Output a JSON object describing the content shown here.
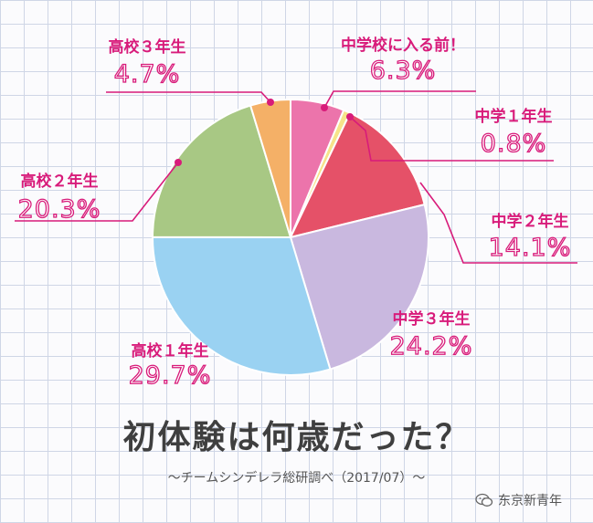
{
  "chart_data": {
    "type": "pie",
    "title": "初体験は何歳だった？",
    "subtitle": "〜チームシンデレラ総研調べ（2017/07）〜",
    "slices": [
      {
        "label": "中学校に入る前！",
        "value": 6.3,
        "value_text": "6.3%",
        "color": "#ec74ab"
      },
      {
        "label": "中学１年生",
        "value": 0.8,
        "value_text": "0.8%",
        "color": "#f6e48a"
      },
      {
        "label": "中学２年生",
        "value": 14.1,
        "value_text": "14.1%",
        "color": "#e55168"
      },
      {
        "label": "中学３年生",
        "value": 24.2,
        "value_text": "24.2%",
        "color": "#c9b8df"
      },
      {
        "label": "高校１年生",
        "value": 29.7,
        "value_text": "29.7%",
        "color": "#9ad2f2"
      },
      {
        "label": "高校２年生",
        "value": 20.3,
        "value_text": "20.3%",
        "color": "#a8c884"
      },
      {
        "label": "高校３年生",
        "value": 4.7,
        "value_text": "4.7%",
        "color": "#f4b067"
      }
    ],
    "label_color": "#d81b7a"
  },
  "watermark": {
    "text": "东京新青年",
    "icon": "wechat-icon"
  }
}
